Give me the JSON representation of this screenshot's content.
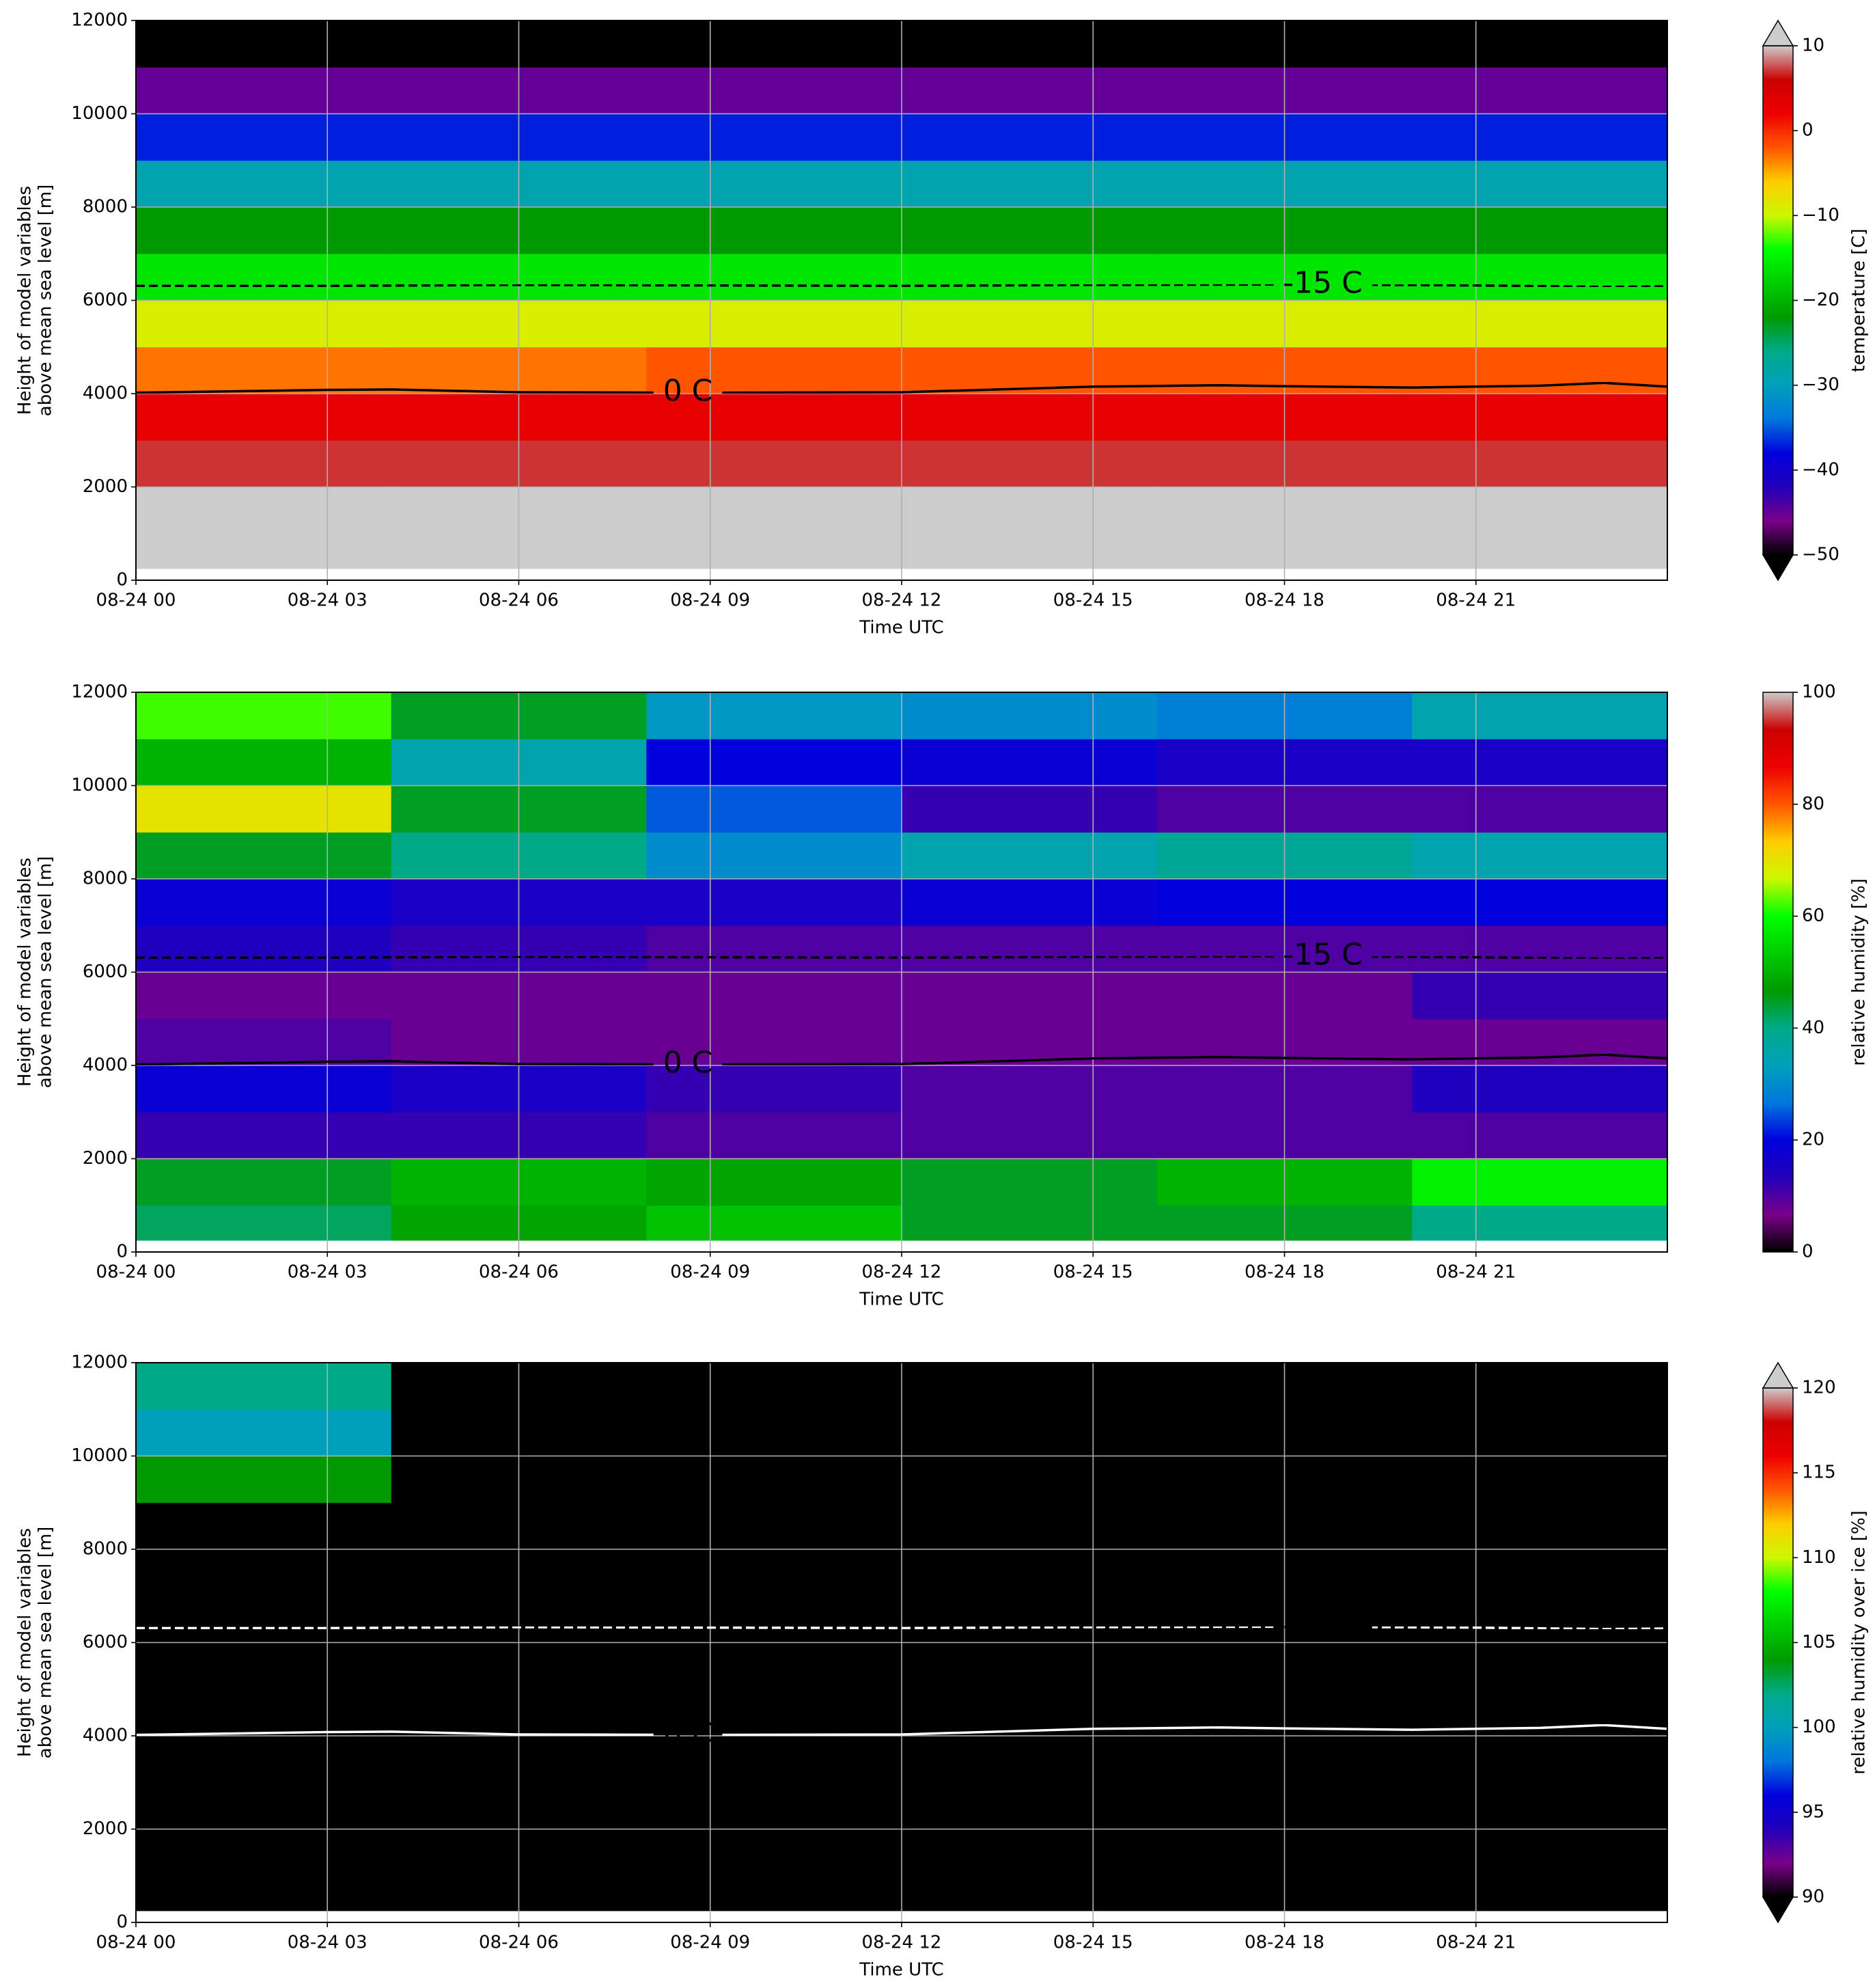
{
  "chart_data": [
    {
      "type": "heatmap",
      "xlabel": "Time UTC",
      "ylabel": [
        "Height of model variables",
        "above mean sea level [m]"
      ],
      "xlim": [
        0,
        24
      ],
      "xticks": [
        {
          "value": 0,
          "label": "08-24 00"
        },
        {
          "value": 3,
          "label": "08-24 03"
        },
        {
          "value": 6,
          "label": "08-24 06"
        },
        {
          "value": 9,
          "label": "08-24 09"
        },
        {
          "value": 12,
          "label": "08-24 12"
        },
        {
          "value": 15,
          "label": "08-24 15"
        },
        {
          "value": 18,
          "label": "08-24 18"
        },
        {
          "value": 21,
          "label": "08-24 21"
        }
      ],
      "ylim": [
        0,
        12000
      ],
      "yticks": [
        0,
        2000,
        4000,
        6000,
        8000,
        10000,
        12000
      ],
      "grid": true,
      "x_bins": [
        0,
        4,
        8,
        12,
        16,
        20,
        24
      ],
      "y_bins": [
        250,
        1000,
        2000,
        3000,
        4000,
        5000,
        6000,
        7000,
        8000,
        9000,
        10000,
        11000,
        12000
      ],
      "z": [
        [
          14,
          14,
          14,
          14,
          14,
          14
        ],
        [
          13,
          13,
          13,
          13,
          13,
          13
        ],
        [
          7,
          7,
          7,
          7,
          7,
          7
        ],
        [
          3,
          3,
          3,
          3,
          3,
          3
        ],
        [
          -3,
          -3,
          -2,
          -2,
          -2,
          -2
        ],
        [
          -9,
          -9,
          -9,
          -9,
          -9,
          -9
        ],
        [
          -16,
          -16,
          -16,
          -16,
          -16,
          -16
        ],
        [
          -22,
          -22,
          -22,
          -22,
          -22,
          -22
        ],
        [
          -29,
          -29,
          -29,
          -29,
          -29,
          -29
        ],
        [
          -37,
          -37,
          -37,
          -37,
          -37,
          -37
        ],
        [
          -45,
          -45,
          -45,
          -45,
          -45,
          -45
        ],
        [
          -55,
          -55,
          -55,
          -55,
          -55,
          -55
        ]
      ],
      "colormap": [
        "#000000",
        "#7a008a",
        "#2200bb",
        "#0000dd",
        "#0077dd",
        "#00a0bb",
        "#00aa88",
        "#009a00",
        "#00cc00",
        "#00ff00",
        "#ccf800",
        "#ffcc00",
        "#ff5500",
        "#ee0000",
        "#cc0000",
        "#cccccc"
      ],
      "under_color": "#000000",
      "over_color": "#cccccc",
      "extend": "both",
      "clim": [
        -50,
        10
      ],
      "cticks": [
        {
          "value": -50,
          "label": "−50"
        },
        {
          "value": -40,
          "label": "−40"
        },
        {
          "value": -30,
          "label": "−30"
        },
        {
          "value": -20,
          "label": "−20"
        },
        {
          "value": -10,
          "label": "−10"
        },
        0,
        10
      ],
      "clabel": "temperature [C]",
      "contours": [
        {
          "label": "0 C",
          "color": "#000000",
          "style": "solid",
          "x": [
            0,
            3,
            4,
            6,
            9,
            12,
            15,
            17,
            18,
            20,
            22,
            23,
            24
          ],
          "y": [
            4020,
            4080,
            4090,
            4030,
            4020,
            4030,
            4150,
            4180,
            4160,
            4130,
            4170,
            4230,
            4150
          ]
        },
        {
          "label": "-15 C",
          "color": "#000000",
          "style": "dashed",
          "x": [
            0,
            3,
            6,
            9,
            12,
            15,
            18,
            21,
            23,
            24
          ],
          "y": [
            6310,
            6310,
            6330,
            6320,
            6310,
            6330,
            6340,
            6320,
            6290,
            6300
          ]
        }
      ]
    },
    {
      "type": "heatmap",
      "xlabel": "Time UTC",
      "ylabel": [
        "Height of model variables",
        "above mean sea level [m]"
      ],
      "xlim": [
        0,
        24
      ],
      "xticks": [
        {
          "value": 0,
          "label": "08-24 00"
        },
        {
          "value": 3,
          "label": "08-24 03"
        },
        {
          "value": 6,
          "label": "08-24 06"
        },
        {
          "value": 9,
          "label": "08-24 09"
        },
        {
          "value": 12,
          "label": "08-24 12"
        },
        {
          "value": 15,
          "label": "08-24 15"
        },
        {
          "value": 18,
          "label": "08-24 18"
        },
        {
          "value": 21,
          "label": "08-24 21"
        }
      ],
      "ylim": [
        0,
        12000
      ],
      "yticks": [
        0,
        2000,
        4000,
        6000,
        8000,
        10000,
        12000
      ],
      "grid": true,
      "x_bins": [
        0,
        4,
        8,
        12,
        16,
        20,
        24
      ],
      "y_bins": [
        250,
        1000,
        2000,
        3000,
        4000,
        5000,
        6000,
        7000,
        8000,
        9000,
        10000,
        11000,
        12000
      ],
      "z": [
        [
          42,
          48,
          52,
          45,
          45,
          40
        ],
        [
          45,
          50,
          48,
          45,
          50,
          58
        ],
        [
          12,
          12,
          10,
          10,
          10,
          10
        ],
        [
          18,
          15,
          12,
          10,
          10,
          14
        ],
        [
          10,
          8,
          8,
          8,
          8,
          8
        ],
        [
          8,
          8,
          8,
          8,
          8,
          12
        ],
        [
          14,
          12,
          10,
          10,
          10,
          10
        ],
        [
          18,
          15,
          15,
          18,
          20,
          20
        ],
        [
          45,
          40,
          30,
          35,
          38,
          35
        ],
        [
          70,
          45,
          25,
          12,
          10,
          10
        ],
        [
          50,
          35,
          20,
          18,
          15,
          15
        ],
        [
          62,
          45,
          32,
          30,
          28,
          35
        ]
      ],
      "colormap": [
        "#000000",
        "#7a008a",
        "#2200bb",
        "#0000dd",
        "#0077dd",
        "#00a0bb",
        "#00aa88",
        "#009a00",
        "#00cc00",
        "#00ff00",
        "#ccf800",
        "#ffcc00",
        "#ff5500",
        "#ee0000",
        "#cc0000",
        "#cccccc"
      ],
      "extend": "neither",
      "clim": [
        0,
        100
      ],
      "cticks": [
        0,
        20,
        40,
        60,
        80,
        100
      ],
      "clabel": "relative humidity [%]",
      "contours": [
        {
          "label": "0 C",
          "color": "#000000",
          "style": "solid",
          "x": [
            0,
            3,
            4,
            6,
            9,
            12,
            15,
            17,
            18,
            20,
            22,
            23,
            24
          ],
          "y": [
            4020,
            4080,
            4090,
            4030,
            4020,
            4030,
            4150,
            4180,
            4160,
            4130,
            4170,
            4230,
            4150
          ]
        },
        {
          "label": "-15 C",
          "color": "#000000",
          "style": "dashed",
          "x": [
            0,
            3,
            6,
            9,
            12,
            15,
            18,
            21,
            23,
            24
          ],
          "y": [
            6310,
            6310,
            6330,
            6320,
            6310,
            6330,
            6340,
            6320,
            6290,
            6300
          ]
        }
      ]
    },
    {
      "type": "heatmap",
      "xlabel": "Time UTC",
      "ylabel": [
        "Height of model variables",
        "above mean sea level [m]"
      ],
      "xlim": [
        0,
        24
      ],
      "xticks": [
        {
          "value": 0,
          "label": "08-24 00"
        },
        {
          "value": 3,
          "label": "08-24 03"
        },
        {
          "value": 6,
          "label": "08-24 06"
        },
        {
          "value": 9,
          "label": "08-24 09"
        },
        {
          "value": 12,
          "label": "08-24 12"
        },
        {
          "value": 15,
          "label": "08-24 15"
        },
        {
          "value": 18,
          "label": "08-24 18"
        },
        {
          "value": 21,
          "label": "08-24 21"
        }
      ],
      "ylim": [
        0,
        12000
      ],
      "yticks": [
        0,
        2000,
        4000,
        6000,
        8000,
        10000,
        12000
      ],
      "grid": true,
      "x_bins": [
        0,
        4,
        8,
        12,
        16,
        20,
        24
      ],
      "y_bins": [
        250,
        1000,
        2000,
        3000,
        4000,
        5000,
        6000,
        7000,
        8000,
        9000,
        10000,
        11000,
        12000
      ],
      "z": [
        [
          80,
          80,
          80,
          80,
          80,
          80
        ],
        [
          80,
          80,
          80,
          80,
          80,
          80
        ],
        [
          80,
          80,
          80,
          80,
          80,
          80
        ],
        [
          80,
          80,
          80,
          80,
          80,
          80
        ],
        [
          80,
          80,
          80,
          80,
          80,
          80
        ],
        [
          80,
          80,
          80,
          80,
          80,
          80
        ],
        [
          80,
          80,
          80,
          80,
          80,
          80
        ],
        [
          80,
          80,
          80,
          80,
          80,
          80
        ],
        [
          80,
          80,
          80,
          80,
          80,
          80
        ],
        [
          104,
          80,
          80,
          80,
          80,
          80
        ],
        [
          100,
          80,
          80,
          80,
          80,
          80
        ],
        [
          102,
          80,
          80,
          80,
          80,
          80
        ]
      ],
      "colormap": [
        "#000000",
        "#7a008a",
        "#2200bb",
        "#0000dd",
        "#0077dd",
        "#00a0bb",
        "#00aa88",
        "#009a00",
        "#00cc00",
        "#00ff00",
        "#ccf800",
        "#ffcc00",
        "#ff5500",
        "#ee0000",
        "#cc0000",
        "#cccccc"
      ],
      "under_color": "#000000",
      "over_color": "#cccccc",
      "extend": "both",
      "clim": [
        90,
        120
      ],
      "cticks": [
        90,
        95,
        100,
        105,
        110,
        115,
        120
      ],
      "clabel": "relative humidity over ice [%]",
      "contours": [
        {
          "label": "0 C",
          "color": "#ffffff",
          "style": "solid",
          "x": [
            0,
            3,
            4,
            6,
            9,
            12,
            15,
            17,
            18,
            20,
            22,
            23,
            24
          ],
          "y": [
            4020,
            4080,
            4090,
            4030,
            4020,
            4030,
            4150,
            4180,
            4160,
            4130,
            4170,
            4230,
            4150
          ]
        },
        {
          "label": "-15 C",
          "color": "#ffffff",
          "style": "dashed",
          "x": [
            0,
            3,
            6,
            9,
            12,
            15,
            18,
            21,
            23,
            24
          ],
          "y": [
            6310,
            6310,
            6330,
            6320,
            6310,
            6330,
            6340,
            6320,
            6290,
            6300
          ]
        }
      ]
    }
  ]
}
